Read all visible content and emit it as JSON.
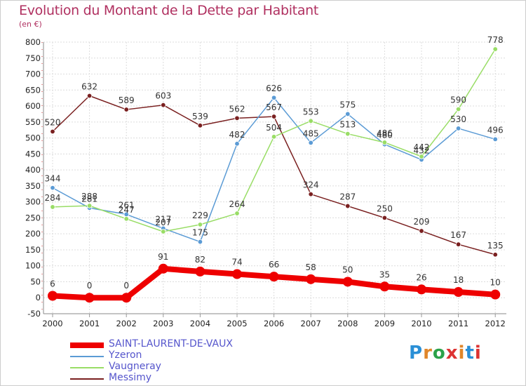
{
  "title": "Evolution du Montant de la Dette par Habitant",
  "unit": "(en €)",
  "logo": "Proxiti",
  "chart_data": {
    "type": "line",
    "categories": [
      "2000",
      "2001",
      "2002",
      "2003",
      "2004",
      "2005",
      "2006",
      "2007",
      "2008",
      "2009",
      "2010",
      "2011",
      "2012"
    ],
    "ylim": [
      -50,
      800
    ],
    "yticks": [
      -50,
      0,
      50,
      100,
      150,
      200,
      250,
      300,
      350,
      400,
      450,
      500,
      550,
      600,
      650,
      700,
      750,
      800
    ],
    "grid": true,
    "legend_position": "bottom-left",
    "series": [
      {
        "name": "SAINT-LAURENT-DE-VAUX",
        "color": "#ee0000",
        "width": 8,
        "values": [
          6,
          0,
          0,
          91,
          82,
          74,
          66,
          58,
          50,
          35,
          26,
          18,
          10
        ]
      },
      {
        "name": "Yzeron",
        "color": "#5b9bd5",
        "width": 1.5,
        "values": [
          344,
          281,
          261,
          217,
          175,
          482,
          626,
          485,
          575,
          480,
          432,
          530,
          496
        ]
      },
      {
        "name": "Vaugneray",
        "color": "#99dd66",
        "width": 1.5,
        "values": [
          284,
          288,
          247,
          207,
          229,
          264,
          504,
          553,
          513,
          486,
          442,
          590,
          778
        ]
      },
      {
        "name": "Messimy",
        "color": "#7a2020",
        "width": 1.5,
        "values": [
          520,
          632,
          589,
          603,
          539,
          562,
          567,
          324,
          287,
          250,
          209,
          167,
          135
        ]
      }
    ]
  }
}
